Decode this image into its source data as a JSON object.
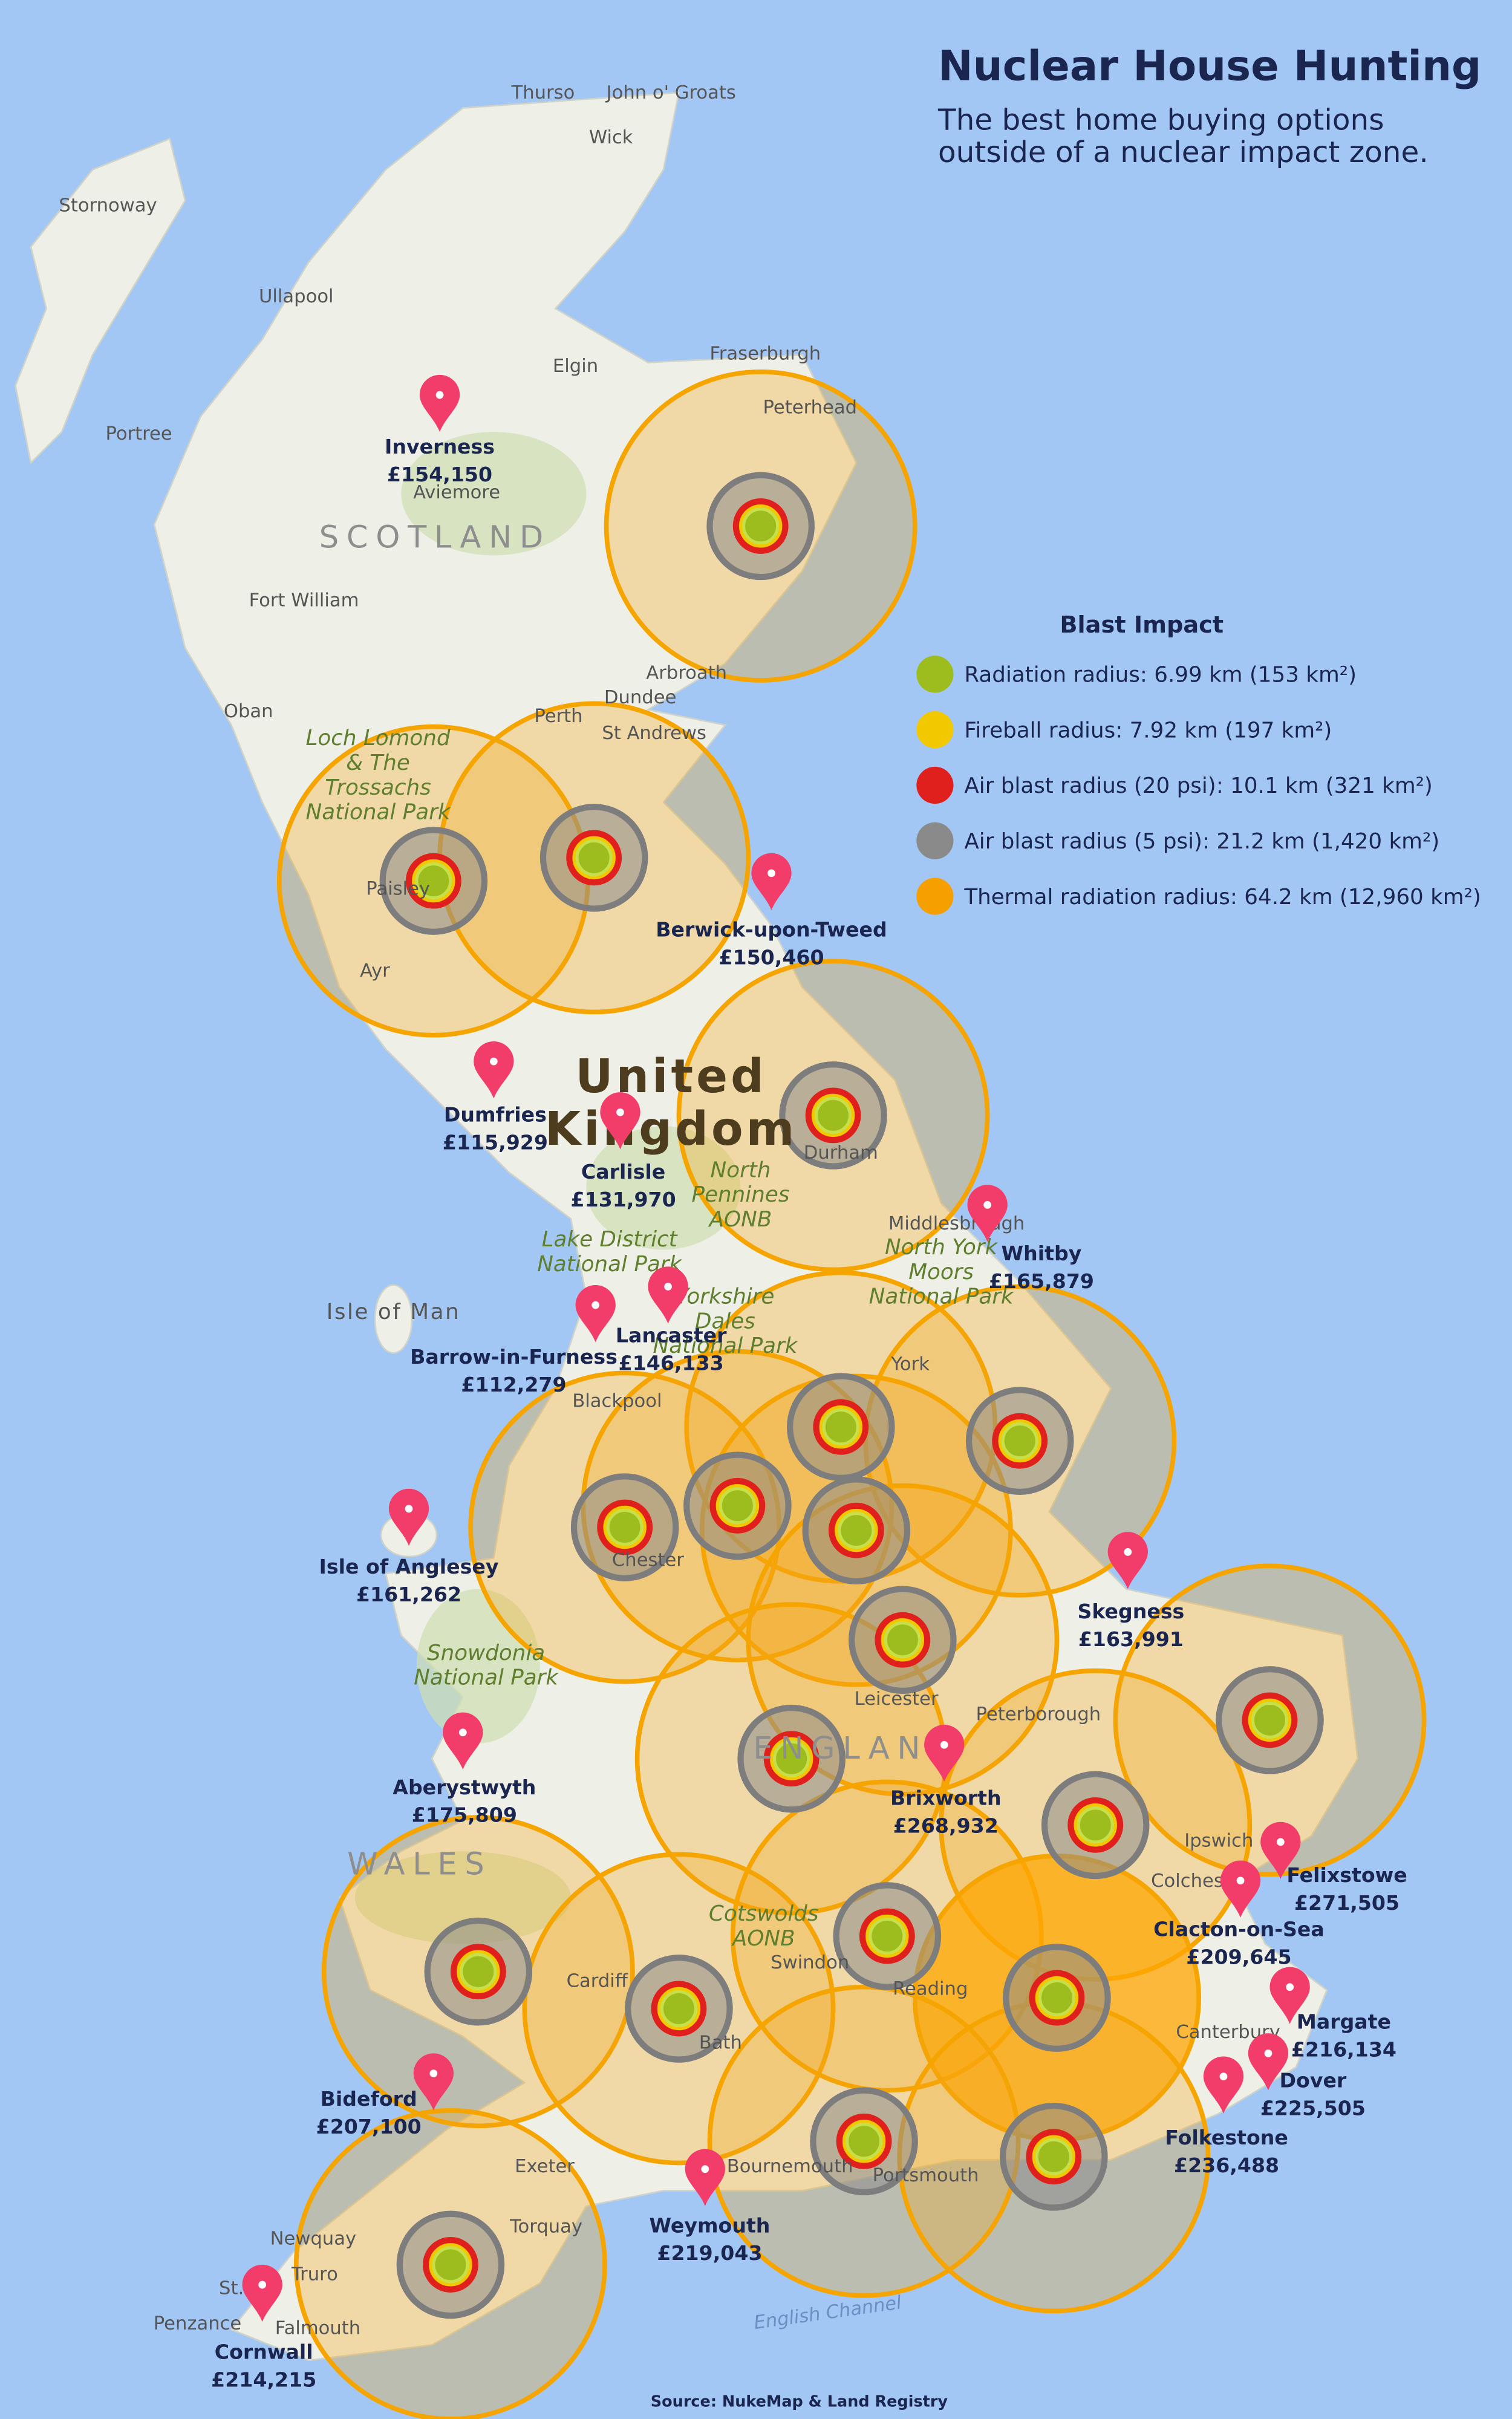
{
  "header": {
    "title": "Nuclear House Hunting",
    "subtitle_lines": [
      "The best home buying options",
      "outside of a nuclear impact zone."
    ]
  },
  "legend": {
    "title": "Blast Impact",
    "items": [
      {
        "label": "Radiation radius: 6.99 km (153 km²)",
        "color": "#9dbd1e"
      },
      {
        "label": "Fireball radius: 7.92 km (197 km²)",
        "color": "#f2c800"
      },
      {
        "label": "Air blast radius (20 psi): 10.1 km (321 km²)",
        "color": "#e0201c"
      },
      {
        "label": "Air blast radius (5 psi): 21.2 km (1,420 km²)",
        "color": "#8a8a8a"
      },
      {
        "label": "Thermal radiation radius: 64.2 km (12,960 km²)",
        "color": "#f5a000"
      }
    ]
  },
  "pins": [
    {
      "name": "Inverness",
      "price": "£154,150"
    },
    {
      "name": "Berwick-upon-Tweed",
      "price": "£150,460"
    },
    {
      "name": "Dumfries",
      "price": "£115,929"
    },
    {
      "name": "Carlisle",
      "price": "£131,970"
    },
    {
      "name": "Whitby",
      "price": "£165,879"
    },
    {
      "name": "Barrow-in-Furness",
      "price": "£112,279"
    },
    {
      "name": "Lancaster",
      "price": "£146,133"
    },
    {
      "name": "Isle of Anglesey",
      "price": "£161,262"
    },
    {
      "name": "Skegness",
      "price": "£163,991"
    },
    {
      "name": "Aberystwyth",
      "price": "£175,809"
    },
    {
      "name": "Brixworth",
      "price": "£268,932"
    },
    {
      "name": "Felixstowe",
      "price": "£271,505"
    },
    {
      "name": "Clacton-on-Sea",
      "price": "£209,645"
    },
    {
      "name": "Margate",
      "price": "£216,134"
    },
    {
      "name": "Dover",
      "price": "£225,505"
    },
    {
      "name": "Folkestone",
      "price": "£236,488"
    },
    {
      "name": "Bideford",
      "price": "£207,100"
    },
    {
      "name": "Weymouth",
      "price": "£219,043"
    },
    {
      "name": "Cornwall",
      "price": "£214,215"
    }
  ],
  "place_labels": [
    "Thurso",
    "John o' Groats",
    "Wick",
    "Stornoway",
    "Ullapool",
    "Portree",
    "Elgin",
    "Fraserburgh",
    "Peterhead",
    "Aviemore",
    "SCOTLAND",
    "Fort William",
    "Oban",
    "Arbroath",
    "Dundee",
    "Perth",
    "St Andrews",
    "Loch Lomond",
    "& The",
    "Trossachs",
    "National Park",
    "Paisley",
    "Ayr",
    "United",
    "Kingdom",
    "Durham",
    "North",
    "Pennines",
    "AONB",
    "Lake District",
    "National Park",
    "Isle of Man",
    "Middlesbrough",
    "North York",
    "Moors",
    "National Park",
    "Yorkshire",
    "Dales",
    "National Park",
    "York",
    "Blackpool",
    "Chester",
    "Leicester",
    "Peterborough",
    "Snowdonia",
    "National Park",
    "ENGLAND",
    "WALES",
    "Ipswich",
    "Colchester",
    "Cotswolds",
    "AONB",
    "Swindon",
    "Cardiff",
    "Reading",
    "Bath",
    "Canterbury",
    "Bournemouth",
    "Portsmouth",
    "Exeter",
    "Torquay",
    "Newquay",
    "Truro",
    "St.",
    "Penzance",
    "Falmouth",
    "English Channel"
  ],
  "source": "Source: NukeMap & Land Registry"
}
